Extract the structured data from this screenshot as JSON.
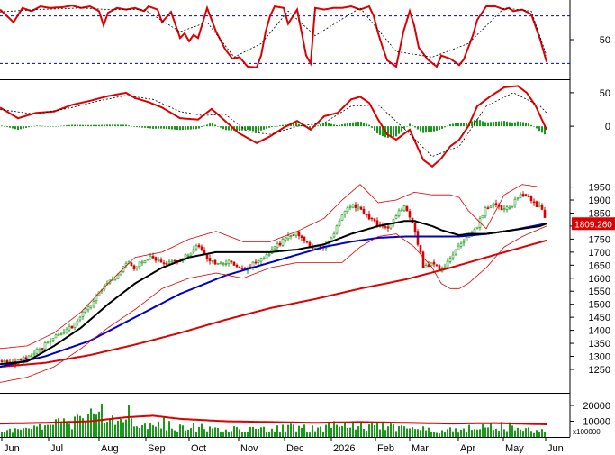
{
  "chart_data": [
    {
      "type": "line",
      "panel": "oscillator-top",
      "ylim": [
        0,
        100
      ],
      "yticks": [
        "50"
      ],
      "reference_levels": [
        80,
        20
      ],
      "series": [
        {
          "key": "main",
          "color": "#dd0000",
          "x": [
            0,
            15,
            25,
            35,
            45,
            55,
            70,
            80,
            90,
            100,
            110,
            115,
            120,
            130,
            140,
            150,
            160,
            165,
            170,
            175,
            180,
            190,
            200,
            205,
            210,
            215,
            220,
            230,
            240,
            250,
            258,
            266,
            275,
            285,
            290,
            295,
            300,
            305,
            315,
            320,
            330,
            340,
            345,
            350,
            360,
            370,
            380,
            390,
            400,
            410,
            415,
            420,
            425,
            430,
            440,
            448,
            455,
            460,
            465,
            475,
            485,
            490,
            500,
            510,
            515,
            520,
            525,
            530,
            540,
            550,
            560,
            565,
            570,
            580,
            590,
            600,
            607
          ],
          "values": [
            88,
            72,
            90,
            86,
            92,
            90,
            91,
            93,
            90,
            92,
            86,
            68,
            84,
            90,
            88,
            90,
            86,
            92,
            90,
            88,
            72,
            85,
            52,
            58,
            48,
            56,
            52,
            90,
            60,
            38,
            26,
            28,
            16,
            15,
            30,
            60,
            80,
            92,
            90,
            70,
            88,
            30,
            20,
            90,
            88,
            90,
            90,
            92,
            88,
            92,
            80,
            58,
            40,
            24,
            16,
            60,
            86,
            68,
            40,
            25,
            16,
            30,
            26,
            18,
            25,
            40,
            55,
            75,
            92,
            92,
            88,
            90,
            86,
            88,
            82,
            50,
            22
          ]
        },
        {
          "key": "signal",
          "color": "#000000",
          "dashed": true,
          "x": [
            0,
            40,
            90,
            120,
            160,
            200,
            230,
            260,
            290,
            320,
            350,
            400,
            440,
            480,
            520,
            560,
            590,
            607
          ],
          "values": [
            85,
            88,
            90,
            88,
            88,
            60,
            72,
            28,
            45,
            86,
            55,
            90,
            35,
            28,
            45,
            90,
            86,
            30
          ]
        }
      ]
    },
    {
      "type": "line",
      "panel": "macd",
      "ylim": [
        -75,
        70
      ],
      "yticks": [
        "50",
        "0"
      ],
      "series": [
        {
          "key": "macd",
          "color": "#dd0000",
          "x": [
            0,
            20,
            40,
            60,
            80,
            100,
            120,
            140,
            150,
            165,
            180,
            200,
            220,
            235,
            250,
            265,
            285,
            300,
            315,
            330,
            345,
            360,
            375,
            390,
            400,
            410,
            420,
            430,
            440,
            455,
            470,
            480,
            490,
            500,
            510,
            520,
            530,
            545,
            560,
            575,
            585,
            595,
            607
          ],
          "values": [
            28,
            12,
            20,
            22,
            32,
            38,
            45,
            50,
            42,
            36,
            28,
            12,
            10,
            26,
            8,
            -10,
            -25,
            -15,
            -2,
            8,
            -5,
            15,
            20,
            40,
            44,
            35,
            10,
            -12,
            -20,
            -5,
            -50,
            -60,
            -48,
            -30,
            -20,
            0,
            30,
            45,
            58,
            60,
            50,
            30,
            -5
          ]
        },
        {
          "key": "signal",
          "color": "#000000",
          "dashed": true,
          "x": [
            0,
            40,
            80,
            110,
            140,
            170,
            200,
            225,
            250,
            275,
            300,
            330,
            360,
            390,
            420,
            450,
            480,
            510,
            540,
            570,
            600,
            607
          ],
          "values": [
            25,
            18,
            28,
            38,
            46,
            40,
            22,
            16,
            18,
            -8,
            -12,
            0,
            5,
            30,
            32,
            -5,
            -45,
            -30,
            30,
            50,
            30,
            20
          ]
        }
      ],
      "histogram_color": "#1a9a1a"
    },
    {
      "type": "candlestick",
      "panel": "price",
      "ylim": [
        1160,
        1990
      ],
      "yticks": [
        "1950",
        "1900",
        "1850",
        "1800",
        "1750",
        "1700",
        "1650",
        "1600",
        "1550",
        "1500",
        "1450",
        "1400",
        "1350",
        "1300",
        "1250"
      ],
      "last_price_label": "1809.260",
      "xticks": [
        "Jun",
        "Jul",
        "Aug",
        "Sep",
        "Oct",
        "Nov",
        "Dec",
        "2026",
        "Feb",
        "Mar",
        "Apr",
        "May",
        "Jun"
      ],
      "close_path": {
        "x": [
          0,
          15,
          30,
          45,
          55,
          70,
          85,
          100,
          115,
          130,
          140,
          150,
          165,
          180,
          200,
          210,
          220,
          230,
          240,
          255,
          265,
          275,
          285,
          300,
          310,
          320,
          330,
          345,
          360,
          370,
          380,
          390,
          400,
          410,
          420,
          430,
          440,
          450,
          460,
          465,
          470,
          480,
          490,
          500,
          510,
          520,
          530,
          540,
          550,
          560,
          570,
          580,
          590,
          600,
          605,
          607
        ],
        "values": [
          1280,
          1270,
          1300,
          1330,
          1360,
          1390,
          1430,
          1500,
          1560,
          1610,
          1660,
          1640,
          1680,
          1660,
          1660,
          1700,
          1720,
          1680,
          1650,
          1670,
          1640,
          1640,
          1660,
          1700,
          1730,
          1770,
          1770,
          1720,
          1720,
          1760,
          1840,
          1880,
          1870,
          1830,
          1800,
          1790,
          1840,
          1880,
          1800,
          1720,
          1650,
          1650,
          1630,
          1680,
          1720,
          1760,
          1800,
          1870,
          1880,
          1860,
          1890,
          1920,
          1900,
          1870,
          1840,
          1809
        ]
      },
      "series": [
        {
          "name": "",
          "key": "ma-long",
          "color": "#dd0000",
          "x": [
            0,
            50,
            100,
            150,
            200,
            250,
            300,
            350,
            400,
            450,
            500,
            550,
            607
          ],
          "values": [
            1260,
            1275,
            1305,
            1345,
            1390,
            1440,
            1485,
            1520,
            1560,
            1595,
            1640,
            1690,
            1745
          ]
        },
        {
          "name": "",
          "key": "ma-mid",
          "color": "#0000cc",
          "x": [
            0,
            50,
            100,
            150,
            200,
            250,
            300,
            330,
            360,
            390,
            420,
            450,
            480,
            510,
            540,
            570,
            607
          ],
          "values": [
            1260,
            1300,
            1360,
            1450,
            1540,
            1610,
            1660,
            1690,
            1720,
            1740,
            1755,
            1760,
            1760,
            1760,
            1770,
            1785,
            1810
          ]
        },
        {
          "name": "",
          "key": "ma-short",
          "color": "#000000",
          "x": [
            0,
            30,
            60,
            90,
            120,
            150,
            180,
            210,
            240,
            270,
            300,
            330,
            360,
            390,
            420,
            450,
            460,
            470,
            480,
            490,
            500,
            510,
            520,
            540,
            560,
            580,
            600,
            607
          ],
          "values": [
            1270,
            1280,
            1340,
            1410,
            1500,
            1580,
            1640,
            1680,
            1700,
            1700,
            1700,
            1710,
            1730,
            1770,
            1800,
            1820,
            1820,
            1810,
            1800,
            1785,
            1775,
            1765,
            1770,
            1770,
            1780,
            1790,
            1800,
            1810
          ]
        },
        {
          "name": "",
          "key": "bb-upper",
          "color": "#dd0000",
          "thin": true,
          "x": [
            0,
            30,
            60,
            90,
            120,
            150,
            180,
            210,
            240,
            270,
            300,
            330,
            360,
            380,
            400,
            420,
            440,
            460,
            480,
            500,
            510,
            520,
            540,
            560,
            580,
            600,
            607
          ],
          "values": [
            1330,
            1340,
            1390,
            1470,
            1580,
            1680,
            1700,
            1750,
            1780,
            1740,
            1740,
            1780,
            1830,
            1900,
            1960,
            1890,
            1900,
            1930,
            1920,
            1920,
            1910,
            1860,
            1790,
            1920,
            1960,
            1950,
            1950
          ]
        },
        {
          "name": "",
          "key": "bb-lower",
          "color": "#dd0000",
          "thin": true,
          "x": [
            0,
            30,
            60,
            90,
            120,
            150,
            180,
            210,
            240,
            270,
            300,
            330,
            360,
            380,
            400,
            420,
            440,
            460,
            480,
            490,
            500,
            510,
            520,
            540,
            560,
            580,
            600,
            607
          ],
          "values": [
            1200,
            1220,
            1260,
            1330,
            1410,
            1480,
            1560,
            1600,
            1620,
            1600,
            1640,
            1660,
            1660,
            1660,
            1720,
            1760,
            1770,
            1720,
            1640,
            1580,
            1560,
            1560,
            1580,
            1640,
            1720,
            1760,
            1790,
            1800
          ]
        }
      ]
    },
    {
      "type": "bar",
      "panel": "volume",
      "ylim": [
        0,
        28000
      ],
      "yticks": [
        "20000",
        "10000"
      ],
      "unit_label": "x100000",
      "bar_color": "#1a9a1a",
      "series": [
        {
          "name": "",
          "key": "volume-ma",
          "color": "#dd0000",
          "x": [
            0,
            50,
            100,
            140,
            170,
            200,
            250,
            300,
            350,
            400,
            450,
            500,
            550,
            607
          ],
          "values": [
            8500,
            9000,
            10000,
            12500,
            13500,
            11500,
            10000,
            9500,
            9000,
            9500,
            9000,
            8500,
            8800,
            8000
          ]
        }
      ],
      "volume_envelope": {
        "x": [
          0,
          40,
          60,
          100,
          110,
          120,
          140,
          160,
          180,
          200,
          240,
          280,
          320,
          360,
          380,
          400,
          440,
          460,
          480,
          520,
          560,
          580,
          607
        ],
        "values": [
          6000,
          7000,
          11000,
          16000,
          22000,
          14000,
          20000,
          13000,
          12000,
          9000,
          7000,
          6000,
          8000,
          7000,
          12000,
          9000,
          8000,
          11000,
          6000,
          7000,
          10000,
          6000,
          5000
        ]
      }
    }
  ]
}
